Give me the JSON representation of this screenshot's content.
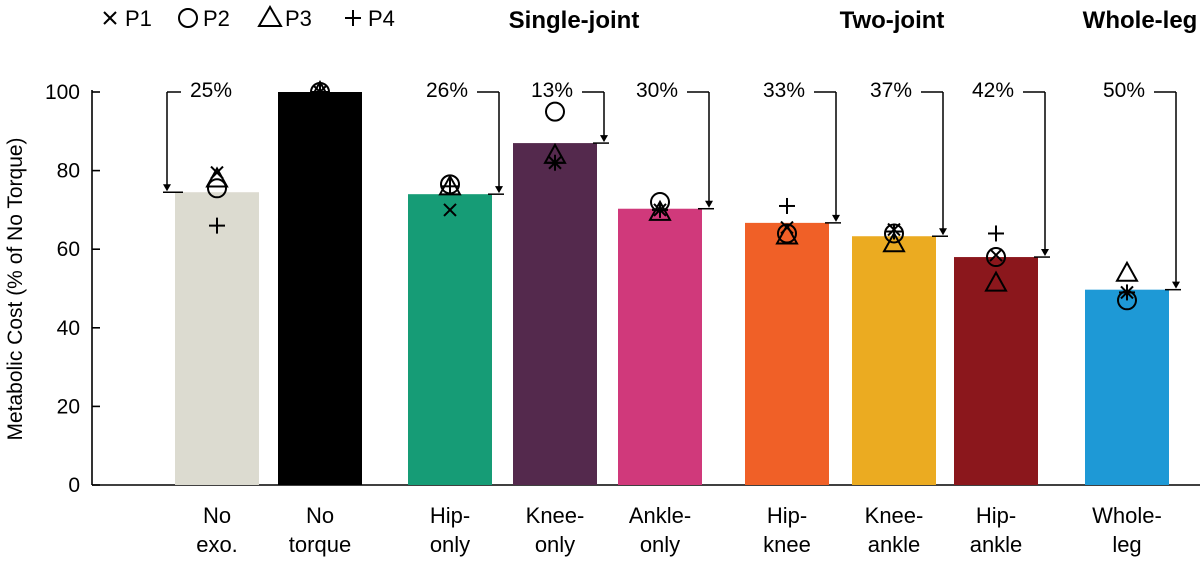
{
  "chart_data": {
    "type": "bar",
    "ylabel": "Metabolic Cost (% of No Torque)",
    "ylim": [
      0,
      100
    ],
    "yticks": [
      0,
      20,
      40,
      60,
      80,
      100
    ],
    "groups": [
      {
        "label": "Single-joint"
      },
      {
        "label": "Two-joint"
      },
      {
        "label": "Whole-leg"
      }
    ],
    "legend": [
      {
        "name": "P1",
        "marker": "x"
      },
      {
        "name": "P2",
        "marker": "circle"
      },
      {
        "name": "P3",
        "marker": "triangle"
      },
      {
        "name": "P4",
        "marker": "plus"
      }
    ],
    "bars": [
      {
        "line1": "No",
        "line2": "exo.",
        "value": 74.5,
        "color": "#dcdbd0",
        "reduction": "25%",
        "points": {
          "P1": 79.5,
          "P2": 75.5,
          "P3": 78,
          "P4": 66
        }
      },
      {
        "line1": "No",
        "line2": "torque",
        "value": 100,
        "color": "#000000",
        "reduction": "",
        "points": {
          "P1": 100,
          "P2": 100,
          "P3": 100,
          "P4": 100
        }
      },
      {
        "line1": "Hip-",
        "line2": "only",
        "value": 74,
        "color": "#169c76",
        "reduction": "26%",
        "points": {
          "P1": 70,
          "P2": 76.5,
          "P3": 76,
          "P4": 76
        }
      },
      {
        "line1": "Knee-",
        "line2": "only",
        "value": 87,
        "color": "#54294d",
        "reduction": "13%",
        "points": {
          "P1": 82,
          "P2": 95,
          "P3": 84,
          "P4": 82
        }
      },
      {
        "line1": "Ankle-",
        "line2": "only",
        "value": 70.3,
        "color": "#d0397b",
        "reduction": "30%",
        "points": {
          "P1": 70,
          "P2": 72,
          "P3": 69.5,
          "P4": 70
        }
      },
      {
        "line1": "Hip-",
        "line2": "knee",
        "value": 66.7,
        "color": "#f06027",
        "reduction": "33%",
        "points": {
          "P1": 65.5,
          "P2": 64,
          "P3": 63.5,
          "P4": 71
        }
      },
      {
        "line1": "Knee-",
        "line2": "ankle",
        "value": 63.3,
        "color": "#ebab21",
        "reduction": "37%",
        "points": {
          "P1": 65,
          "P2": 64,
          "P3": 61.5,
          "P4": 64.5
        }
      },
      {
        "line1": "Hip-",
        "line2": "ankle",
        "value": 58,
        "color": "#8b171c",
        "reduction": "42%",
        "points": {
          "P1": 58.5,
          "P2": 58,
          "P3": 51.5,
          "P4": 64
        }
      },
      {
        "line1": "Whole-",
        "line2": "leg",
        "value": 49.7,
        "color": "#1e99d6",
        "reduction": "50%",
        "points": {
          "P1": 49,
          "P2": 47,
          "P3": 54,
          "P4": 49
        }
      }
    ]
  }
}
